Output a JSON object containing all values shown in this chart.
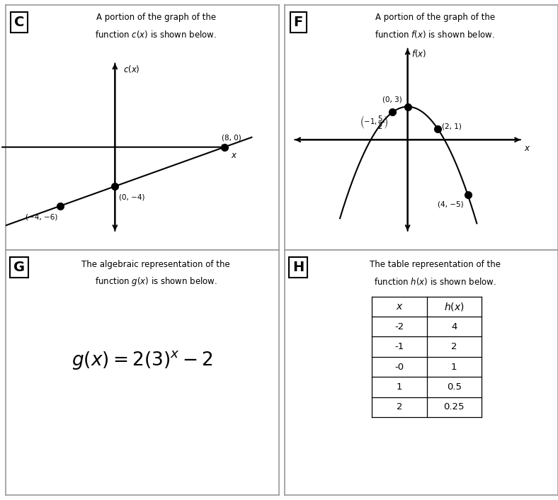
{
  "bg_color": "#ffffff",
  "border_color": "#888888",
  "card_C": {
    "label": "C",
    "title_line1": "A portion of the graph of the",
    "title_line2": "function c(x) is shown below.",
    "points": [
      [
        -4,
        -6
      ],
      [
        0,
        -4
      ],
      [
        8,
        0
      ]
    ],
    "point_labels": [
      "(−4, −6)",
      "(0, −4)",
      "(8, 0)"
    ]
  },
  "card_F": {
    "label": "F",
    "title_line1": "A portion of the graph of the",
    "title_line2": "function f(x) is shown below.",
    "points": [
      [
        -1,
        2.5
      ],
      [
        0,
        3
      ],
      [
        2,
        1
      ],
      [
        4,
        -5
      ]
    ],
    "point_labels": [
      "(-1, 5/2)",
      "(0, 3)",
      "(2, 1)",
      "(4, −5)"
    ]
  },
  "card_G": {
    "label": "G",
    "title_line1": "The algebraic representation of the",
    "title_line2": "function g(x) is shown below."
  },
  "card_H": {
    "label": "H",
    "title_line1": "The table representation of the",
    "title_line2": "function h(x) is shown below.",
    "table_x_labels": [
      "-2",
      "-1",
      "-0",
      "1",
      "2"
    ],
    "table_hx_labels": [
      "4",
      "2",
      "1",
      "0.5",
      "0.25"
    ]
  }
}
